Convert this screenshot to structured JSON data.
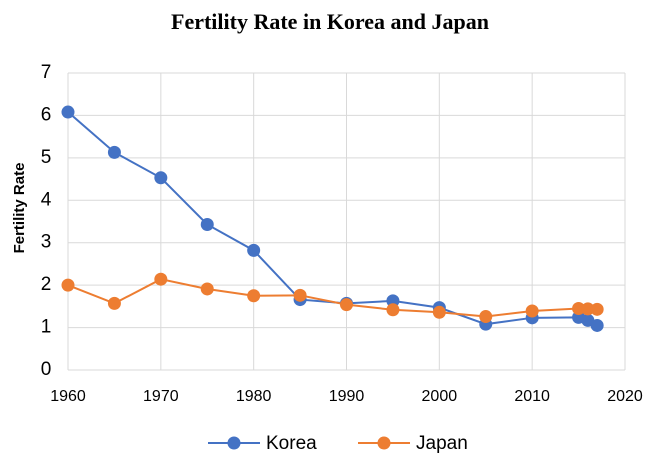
{
  "chart_data": {
    "type": "line",
    "title": "Fertility Rate in Korea and Japan",
    "y_label": "Fertility Rate",
    "x": [
      1960,
      1965,
      1970,
      1975,
      1980,
      1985,
      1990,
      1995,
      2000,
      2005,
      2010,
      2015,
      2016,
      2017
    ],
    "series": [
      {
        "name": "Korea",
        "color": "#4472c4",
        "values": [
          6.08,
          5.13,
          4.53,
          3.43,
          2.82,
          1.66,
          1.57,
          1.63,
          1.47,
          1.08,
          1.23,
          1.24,
          1.17,
          1.05
        ]
      },
      {
        "name": "Japan",
        "color": "#ed7d31",
        "values": [
          2.0,
          1.57,
          2.14,
          1.91,
          1.75,
          1.76,
          1.54,
          1.42,
          1.36,
          1.26,
          1.39,
          1.45,
          1.44,
          1.43
        ]
      }
    ],
    "xlim": [
      1960,
      2020
    ],
    "xticks": [
      1960,
      1970,
      1980,
      1990,
      2000,
      2010,
      2020
    ],
    "ylim": [
      0,
      7
    ],
    "yticks": [
      0,
      1,
      2,
      3,
      4,
      5,
      6,
      7
    ],
    "grid": true,
    "legend": "bottom"
  }
}
